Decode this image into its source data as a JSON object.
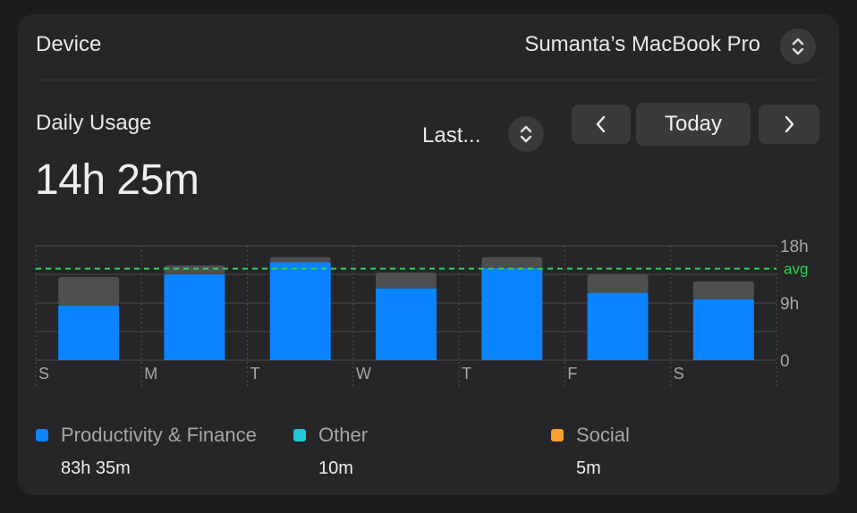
{
  "header": {
    "device_label": "Device",
    "device_name": "Sumanta’s MacBook Pro"
  },
  "usage": {
    "title": "Daily Usage",
    "total": "14h 25m",
    "range_label": "Last...",
    "today_label": "Today"
  },
  "icons": {
    "device_stepper": "chevron-up-down-icon",
    "range_stepper": "chevron-up-down-icon",
    "prev": "chevron-left-icon",
    "next": "chevron-right-icon"
  },
  "chart_data": {
    "type": "bar",
    "stacked": true,
    "categories": [
      "S",
      "M",
      "T",
      "W",
      "T",
      "F",
      "S"
    ],
    "series": [
      {
        "name": "Productivity & Finance",
        "color": "#0a84ff",
        "values": [
          8.6,
          13.5,
          15.4,
          11.3,
          14.5,
          10.6,
          9.6
        ]
      },
      {
        "name": "Other",
        "color": "#4e4e50",
        "values": [
          4.5,
          1.4,
          0.8,
          2.5,
          1.7,
          2.9,
          2.8
        ]
      }
    ],
    "y_ticks": [
      "18h",
      "9h",
      "0"
    ],
    "ylim": [
      0,
      18
    ],
    "average": 14.4,
    "average_label": "avg",
    "average_color": "#30d158",
    "grid": true
  },
  "legend": [
    {
      "label": "Productivity & Finance",
      "value": "83h 35m",
      "color": "#0a84ff"
    },
    {
      "label": "Other",
      "value": "10m",
      "color": "#1ec8d8"
    },
    {
      "label": "Social",
      "value": "5m",
      "color": "#ff9f2e"
    }
  ]
}
